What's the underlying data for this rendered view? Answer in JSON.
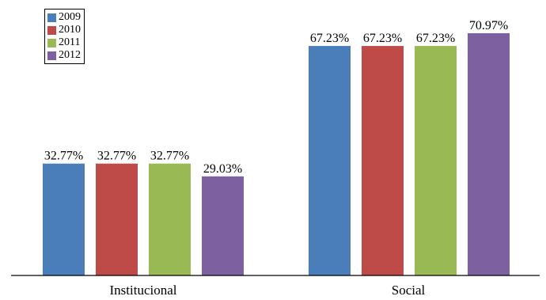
{
  "chart_data": {
    "type": "bar",
    "categories": [
      "Institucional",
      "Social"
    ],
    "series": [
      {
        "name": "2009",
        "values": [
          32.77,
          67.23
        ],
        "labels": [
          "32.77%",
          "67.23%"
        ],
        "color": "#4a7ebb"
      },
      {
        "name": "2010",
        "values": [
          32.77,
          67.23
        ],
        "labels": [
          "32.77%",
          "67.23%"
        ],
        "color": "#be4b48"
      },
      {
        "name": "2011",
        "values": [
          32.77,
          67.23
        ],
        "labels": [
          "32.77%",
          "67.23%"
        ],
        "color": "#98b954"
      },
      {
        "name": "2012",
        "values": [
          29.03,
          70.97
        ],
        "labels": [
          "29.03%",
          "70.97%"
        ],
        "color": "#7d60a0"
      }
    ],
    "ylim": [
      0,
      80
    ],
    "yaxis_visible": false,
    "grid": false,
    "legend_position": "top-left"
  }
}
